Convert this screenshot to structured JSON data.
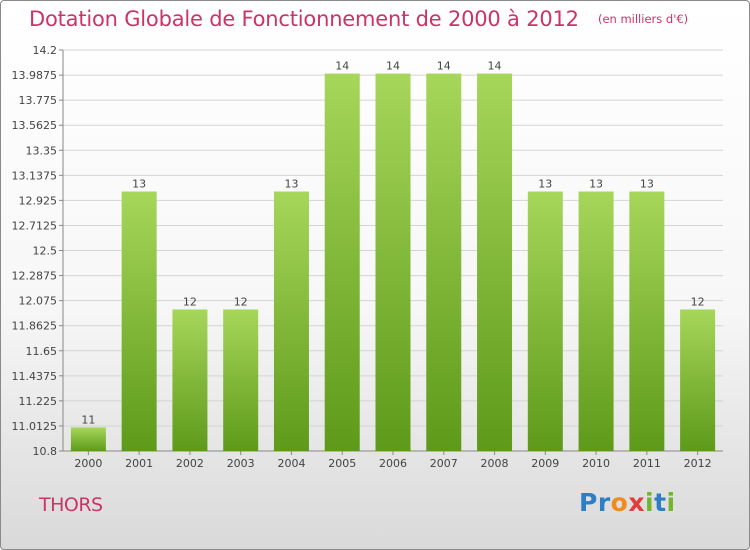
{
  "title": "Dotation Globale de Fonctionnement de 2000 à 2012",
  "unit": "(en milliers d'€)",
  "commune": "THORS",
  "logo": [
    "P",
    "r",
    "o",
    "x",
    "i",
    "t",
    "i"
  ],
  "colors": {
    "title": "#cc3366",
    "bar_top": "#a6d65a",
    "bar_bottom": "#5e9a1a"
  },
  "chart_data": {
    "type": "bar",
    "categories": [
      "2000",
      "2001",
      "2002",
      "2003",
      "2004",
      "2005",
      "2006",
      "2007",
      "2008",
      "2009",
      "2010",
      "2011",
      "2012"
    ],
    "values": [
      11,
      13,
      12,
      12,
      13,
      14,
      14,
      14,
      14,
      13,
      13,
      13,
      12
    ],
    "data_labels": [
      "11",
      "13",
      "12",
      "12",
      "13",
      "14",
      "14",
      "14",
      "14",
      "13",
      "13",
      "13",
      "12"
    ],
    "yticks": [
      "14.2",
      "13.9875",
      "13.775",
      "13.5625",
      "13.35",
      "13.1375",
      "12.925",
      "12.7125",
      "12.5",
      "12.2875",
      "12.075",
      "11.8625",
      "11.65",
      "11.4375",
      "11.225",
      "11.0125",
      "10.8"
    ],
    "ylim": [
      10.8,
      14.2
    ],
    "grid": true,
    "legend": "none"
  }
}
